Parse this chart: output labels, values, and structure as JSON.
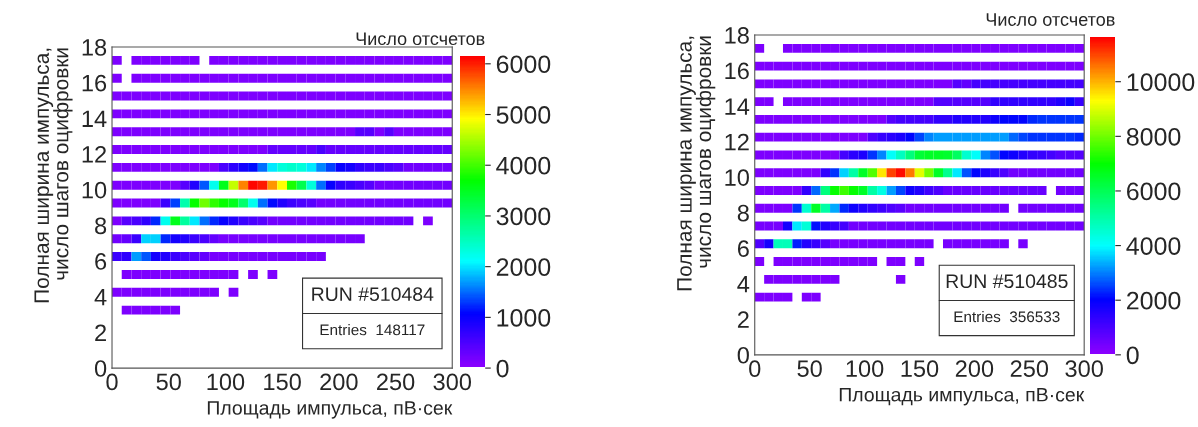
{
  "chart_data": [
    {
      "type": "heatmap",
      "xlabel": "Площадь импульса, пВ·сек",
      "ylabel": "Полная ширина импульса,\nчисло шагов оцифровки",
      "clabel": "Число отсчетов",
      "annotations": [
        "RUN #510484",
        "Entries  148117"
      ],
      "xlim": [
        0,
        300
      ],
      "xticks": [
        0,
        50,
        100,
        150,
        200,
        250,
        300
      ],
      "ylim": [
        0,
        18
      ],
      "yticks": [
        0,
        2,
        4,
        6,
        8,
        10,
        12,
        14,
        16,
        18
      ],
      "clim": [
        0,
        6130
      ],
      "cticks": [
        0,
        1000,
        2000,
        3000,
        4000,
        5000,
        6000
      ],
      "cells": [
        null,
        [
          100,
          null,
          100,
          100,
          100,
          100,
          100,
          100,
          100,
          null,
          100,
          100,
          100,
          100,
          100,
          100,
          100,
          100,
          100,
          100,
          100,
          100,
          100,
          100,
          100,
          100,
          100,
          100,
          100,
          100,
          100,
          100,
          100,
          100,
          100
        ],
        null,
        [
          100,
          null,
          100,
          100,
          100,
          100,
          100,
          100,
          100,
          100,
          100,
          100,
          100,
          100,
          100,
          100,
          100,
          100,
          100,
          100,
          100,
          100,
          100,
          100,
          100,
          100,
          100,
          100,
          100,
          100,
          100,
          100,
          100,
          100,
          100
        ],
        null,
        [
          100,
          100,
          100,
          100,
          100,
          100,
          100,
          100,
          100,
          100,
          100,
          100,
          100,
          100,
          100,
          100,
          100,
          100,
          100,
          100,
          100,
          100,
          100,
          100,
          100,
          100,
          100,
          100,
          100,
          100,
          100,
          100,
          100,
          100,
          100
        ],
        null,
        [
          100,
          100,
          100,
          100,
          100,
          100,
          100,
          100,
          100,
          100,
          100,
          100,
          100,
          100,
          100,
          100,
          100,
          100,
          100,
          100,
          100,
          100,
          100,
          100,
          100,
          100,
          100,
          100,
          100,
          100,
          100,
          100,
          100,
          100,
          100
        ],
        null,
        [
          100,
          100,
          100,
          100,
          100,
          100,
          100,
          100,
          100,
          100,
          100,
          100,
          100,
          100,
          100,
          100,
          100,
          100,
          100,
          100,
          100,
          100,
          100,
          100,
          100,
          400,
          400,
          100,
          400,
          100,
          100,
          100,
          100,
          100,
          100
        ],
        null,
        [
          100,
          100,
          100,
          100,
          100,
          100,
          100,
          100,
          100,
          100,
          100,
          100,
          100,
          100,
          100,
          100,
          300,
          300,
          300,
          300,
          300,
          500,
          300,
          300,
          300,
          300,
          300,
          300,
          300,
          300,
          300,
          300,
          300,
          300,
          300
        ],
        null,
        [
          100,
          100,
          100,
          100,
          100,
          100,
          100,
          100,
          100,
          100,
          100,
          500,
          700,
          900,
          1100,
          1500,
          2000,
          2300,
          2400,
          2300,
          2000,
          1600,
          1300,
          1000,
          900,
          700,
          600,
          600,
          500,
          400,
          200,
          200,
          200,
          200,
          200
        ],
        null,
        [
          100,
          100,
          100,
          100,
          100,
          100,
          100,
          400,
          800,
          1400,
          2200,
          3500,
          4600,
          5500,
          6100,
          6000,
          5400,
          4900,
          3800,
          3200,
          2300,
          1500,
          1000,
          700,
          600,
          500,
          400,
          200,
          200,
          200,
          200,
          200,
          200,
          200,
          200
        ],
        null,
        [
          100,
          100,
          100,
          100,
          100,
          600,
          1300,
          2600,
          3700,
          4200,
          3900,
          3700,
          3500,
          3000,
          2200,
          1500,
          1100,
          800,
          600,
          500,
          400,
          200,
          200,
          200,
          200,
          200,
          200,
          200,
          200,
          200,
          200,
          200,
          200,
          200,
          200
        ],
        null,
        [
          100,
          400,
          500,
          700,
          1200,
          2200,
          3500,
          2700,
          2000,
          1500,
          1200,
          1000,
          800,
          600,
          500,
          400,
          200,
          200,
          200,
          200,
          200,
          200,
          200,
          200,
          200,
          200,
          200,
          200,
          200,
          200,
          200,
          null,
          100,
          null,
          null
        ],
        null,
        [
          200,
          300,
          600,
          1900,
          1900,
          1200,
          900,
          800,
          600,
          500,
          300,
          150,
          150,
          150,
          150,
          150,
          150,
          150,
          150,
          150,
          150,
          150,
          150,
          150,
          150,
          150,
          null,
          null,
          null,
          null,
          null,
          null,
          null,
          null,
          null
        ],
        null,
        [
          600,
          700,
          1700,
          1400,
          900,
          800,
          600,
          500,
          400,
          300,
          150,
          150,
          150,
          150,
          150,
          150,
          150,
          150,
          150,
          150,
          150,
          150,
          null,
          null,
          null,
          null,
          null,
          null,
          null,
          null,
          null,
          null,
          null,
          null,
          null
        ],
        null,
        [
          null,
          100,
          100,
          100,
          100,
          100,
          100,
          100,
          100,
          100,
          100,
          100,
          100,
          null,
          100,
          null,
          100,
          null,
          null,
          null,
          null,
          null,
          null,
          null,
          null,
          null,
          null,
          null,
          null,
          null,
          null,
          null,
          null,
          null,
          null
        ],
        null,
        [
          100,
          100,
          100,
          100,
          100,
          100,
          100,
          100,
          100,
          100,
          100,
          null,
          100,
          null,
          null,
          null,
          null,
          null,
          null,
          null,
          null,
          null,
          null,
          null,
          null,
          null,
          null,
          null,
          null,
          null,
          null,
          null,
          null,
          null,
          null
        ],
        null,
        [
          null,
          100,
          100,
          100,
          100,
          100,
          100,
          null,
          null,
          null,
          null,
          null,
          null,
          null,
          null,
          null,
          null,
          null,
          null,
          null,
          null,
          null,
          null,
          null,
          null,
          null,
          null,
          null,
          null,
          null,
          null,
          null,
          null,
          null,
          null
        ],
        null,
        null,
        null,
        null,
        null,
        null
      ]
    },
    {
      "type": "heatmap",
      "xlabel": "Площадь импульса, пВ·сек",
      "ylabel": "Полная ширина импульса,\nчисло шагов оцифровки",
      "clabel": "Число отсчетов",
      "annotations": [
        "RUN #510485",
        "Entries  356533"
      ],
      "xlim": [
        0,
        300
      ],
      "xticks": [
        0,
        50,
        100,
        150,
        200,
        250,
        300
      ],
      "ylim": [
        0,
        18
      ],
      "yticks": [
        0,
        2,
        4,
        6,
        8,
        10,
        12,
        14,
        16,
        18
      ],
      "clim": [
        0,
        11600
      ],
      "cticks": [
        0,
        2000,
        4000,
        6000,
        8000,
        10000
      ],
      "cells": [
        null,
        [
          200,
          null,
          null,
          200,
          200,
          200,
          200,
          200,
          200,
          200,
          200,
          200,
          200,
          200,
          200,
          200,
          200,
          200,
          200,
          200,
          200,
          200,
          200,
          200,
          200,
          200,
          200,
          200,
          200,
          200,
          200,
          200,
          200,
          200,
          200
        ],
        null,
        [
          200,
          200,
          200,
          200,
          200,
          200,
          200,
          200,
          200,
          200,
          200,
          200,
          200,
          200,
          200,
          200,
          200,
          200,
          200,
          200,
          200,
          200,
          200,
          200,
          200,
          200,
          200,
          200,
          200,
          200,
          200,
          200,
          200,
          200,
          200
        ],
        null,
        [
          200,
          200,
          200,
          200,
          200,
          200,
          200,
          200,
          200,
          200,
          200,
          200,
          200,
          200,
          200,
          200,
          200,
          200,
          200,
          200,
          200,
          800,
          600,
          1000,
          1000,
          1000,
          1000,
          1000,
          1000,
          1000,
          1000,
          1000,
          1000,
          1000,
          1000
        ],
        null,
        [
          200,
          200,
          null,
          200,
          200,
          200,
          200,
          200,
          200,
          200,
          200,
          200,
          200,
          200,
          200,
          200,
          200,
          200,
          200,
          800,
          800,
          800,
          800,
          800,
          800,
          1300,
          1300,
          1300,
          1300,
          1300,
          1300,
          1300,
          1500,
          1800,
          1200
        ],
        null,
        [
          200,
          200,
          200,
          200,
          200,
          200,
          200,
          200,
          200,
          200,
          200,
          200,
          200,
          200,
          800,
          1000,
          1000,
          1000,
          1000,
          1300,
          1300,
          1500,
          1500,
          1500,
          1500,
          1800,
          2000,
          2000,
          2000,
          2300,
          2400,
          2400,
          2400,
          2400,
          2400
        ],
        null,
        [
          200,
          200,
          200,
          200,
          200,
          200,
          200,
          200,
          200,
          200,
          200,
          200,
          900,
          1200,
          1400,
          1600,
          2000,
          2500,
          3000,
          3200,
          3200,
          3200,
          3200,
          3200,
          3200,
          3200,
          3200,
          2800,
          2500,
          2400,
          2400,
          2400,
          2400,
          2400,
          2300
        ],
        null,
        [
          200,
          200,
          200,
          200,
          200,
          200,
          200,
          200,
          200,
          1000,
          1400,
          1600,
          2400,
          3000,
          4000,
          4700,
          5500,
          6300,
          6500,
          6500,
          6400,
          5800,
          4500,
          4000,
          3000,
          2600,
          2000,
          1800,
          1500,
          1300,
          1200,
          1000,
          800,
          800,
          800
        ],
        null,
        [
          200,
          200,
          200,
          200,
          200,
          200,
          200,
          1300,
          2400,
          3600,
          5000,
          6500,
          7700,
          9500,
          11000,
          11500,
          10500,
          9000,
          8000,
          6500,
          5300,
          3800,
          2600,
          2000,
          1600,
          1200,
          900,
          400,
          400,
          400,
          400,
          400,
          400,
          400,
          400
        ],
        null,
        [
          200,
          200,
          200,
          200,
          200,
          1300,
          2800,
          5500,
          7000,
          7500,
          7000,
          6500,
          5000,
          4300,
          3200,
          2500,
          1800,
          1500,
          1100,
          900,
          500,
          500,
          500,
          500,
          500,
          500,
          500,
          500,
          500,
          500,
          500,
          null,
          400,
          400,
          400
        ],
        null,
        [
          200,
          200,
          200,
          200,
          2400,
          4500,
          6500,
          5000,
          3300,
          2300,
          1800,
          1500,
          1300,
          1100,
          900,
          700,
          400,
          400,
          400,
          400,
          400,
          400,
          400,
          400,
          400,
          400,
          400,
          null,
          400,
          400,
          400,
          400,
          400,
          400,
          400
        ],
        null,
        [
          300,
          300,
          300,
          1700,
          3800,
          4400,
          2100,
          1500,
          1200,
          1000,
          400,
          400,
          400,
          400,
          400,
          400,
          400,
          400,
          400,
          400,
          400,
          400,
          400,
          400,
          400,
          400,
          400,
          400,
          400,
          400,
          400,
          400,
          400,
          400,
          400
        ],
        null,
        [
          900,
          1700,
          4800,
          4800,
          2200,
          1500,
          1200,
          800,
          300,
          300,
          300,
          300,
          300,
          300,
          300,
          300,
          300,
          300,
          300,
          null,
          300,
          300,
          300,
          300,
          300,
          300,
          300,
          null,
          300,
          null,
          null,
          null,
          null,
          null,
          null
        ],
        null,
        [
          200,
          null,
          200,
          200,
          200,
          200,
          200,
          200,
          200,
          200,
          200,
          200,
          200,
          null,
          200,
          200,
          null,
          200,
          null,
          null,
          null,
          null,
          null,
          null,
          null,
          null,
          null,
          null,
          null,
          null,
          null,
          null,
          null,
          null,
          null
        ],
        null,
        [
          null,
          200,
          200,
          200,
          200,
          200,
          200,
          200,
          200,
          null,
          null,
          null,
          null,
          null,
          null,
          200,
          null,
          null,
          null,
          null,
          null,
          null,
          null,
          null,
          null,
          null,
          null,
          null,
          null,
          null,
          null,
          null,
          null,
          null,
          null
        ],
        null,
        [
          200,
          200,
          200,
          200,
          null,
          200,
          200,
          null,
          null,
          null,
          null,
          null,
          null,
          null,
          null,
          null,
          null,
          null,
          null,
          null,
          null,
          null,
          null,
          null,
          null,
          null,
          null,
          null,
          null,
          null,
          null,
          null,
          null,
          null,
          null
        ],
        null,
        null,
        null,
        null,
        null,
        null
      ]
    }
  ]
}
